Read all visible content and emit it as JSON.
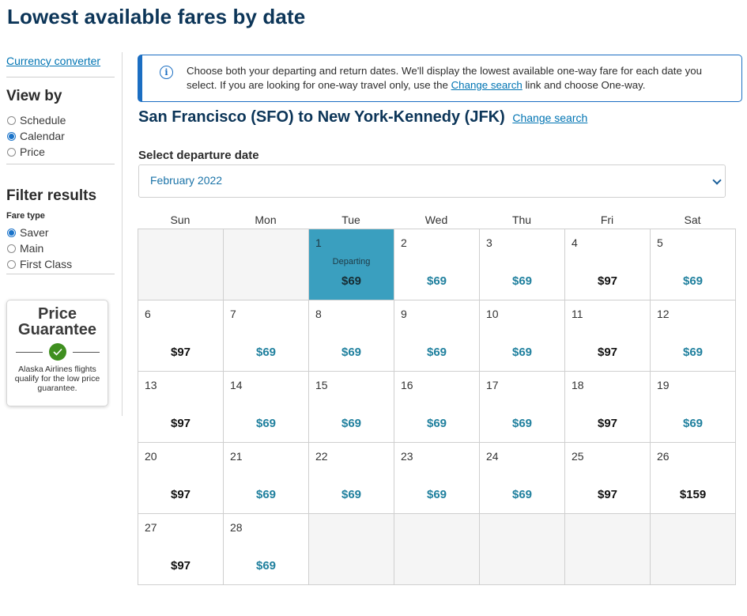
{
  "page_title": "Lowest available fares by date",
  "sidebar": {
    "currency_link": "Currency converter",
    "view_by": {
      "heading": "View by",
      "options": [
        {
          "label": "Schedule",
          "selected": false
        },
        {
          "label": "Calendar",
          "selected": true
        },
        {
          "label": "Price",
          "selected": false
        }
      ]
    },
    "filter": {
      "heading": "Filter results",
      "fare_type_label": "Fare type",
      "options": [
        {
          "label": "Saver",
          "selected": true
        },
        {
          "label": "Main",
          "selected": false
        },
        {
          "label": "First Class",
          "selected": false
        }
      ]
    },
    "guarantee": {
      "title_line1": "Price",
      "title_line2": "Guarantee",
      "text": "Alaska Airlines flights qualify for the low price guarantee."
    }
  },
  "info": {
    "text_before": "Choose both your departing and return dates. We'll display the lowest available one-way fare for each date you select. If you are looking for one-way travel only, use the ",
    "link": "Change search",
    "text_after": " link and choose One-way.",
    "icon": "info-icon"
  },
  "route": {
    "title": "San Francisco (SFO) to New York-Kennedy (JFK)",
    "change_link": "Change search"
  },
  "select": {
    "label": "Select departure date",
    "value": "February 2022"
  },
  "calendar": {
    "weekdays": [
      "Sun",
      "Mon",
      "Tue",
      "Wed",
      "Thu",
      "Fri",
      "Sat"
    ],
    "leading_blanks": 2,
    "trailing_blanks": 5,
    "departing_label": "Departing",
    "days": [
      {
        "day": "1",
        "price": "$69",
        "fare": "saver",
        "selected": true
      },
      {
        "day": "2",
        "price": "$69",
        "fare": "saver"
      },
      {
        "day": "3",
        "price": "$69",
        "fare": "saver"
      },
      {
        "day": "4",
        "price": "$97",
        "fare": "regular"
      },
      {
        "day": "5",
        "price": "$69",
        "fare": "saver"
      },
      {
        "day": "6",
        "price": "$97",
        "fare": "regular"
      },
      {
        "day": "7",
        "price": "$69",
        "fare": "saver"
      },
      {
        "day": "8",
        "price": "$69",
        "fare": "saver"
      },
      {
        "day": "9",
        "price": "$69",
        "fare": "saver"
      },
      {
        "day": "10",
        "price": "$69",
        "fare": "saver"
      },
      {
        "day": "11",
        "price": "$97",
        "fare": "regular"
      },
      {
        "day": "12",
        "price": "$69",
        "fare": "saver"
      },
      {
        "day": "13",
        "price": "$97",
        "fare": "regular"
      },
      {
        "day": "14",
        "price": "$69",
        "fare": "saver"
      },
      {
        "day": "15",
        "price": "$69",
        "fare": "saver"
      },
      {
        "day": "16",
        "price": "$69",
        "fare": "saver"
      },
      {
        "day": "17",
        "price": "$69",
        "fare": "saver"
      },
      {
        "day": "18",
        "price": "$97",
        "fare": "regular"
      },
      {
        "day": "19",
        "price": "$69",
        "fare": "saver"
      },
      {
        "day": "20",
        "price": "$97",
        "fare": "regular"
      },
      {
        "day": "21",
        "price": "$69",
        "fare": "saver"
      },
      {
        "day": "22",
        "price": "$69",
        "fare": "saver"
      },
      {
        "day": "23",
        "price": "$69",
        "fare": "saver"
      },
      {
        "day": "24",
        "price": "$69",
        "fare": "saver"
      },
      {
        "day": "25",
        "price": "$97",
        "fare": "regular"
      },
      {
        "day": "26",
        "price": "$159",
        "fare": "regular"
      },
      {
        "day": "27",
        "price": "$97",
        "fare": "regular"
      },
      {
        "day": "28",
        "price": "$69",
        "fare": "saver"
      }
    ]
  },
  "colors": {
    "heading": "#0c3558",
    "link": "#0074b3",
    "selected_cell": "#3a9fbf",
    "saver_price": "#20809e",
    "guarantee_check": "#3f8f1f"
  }
}
